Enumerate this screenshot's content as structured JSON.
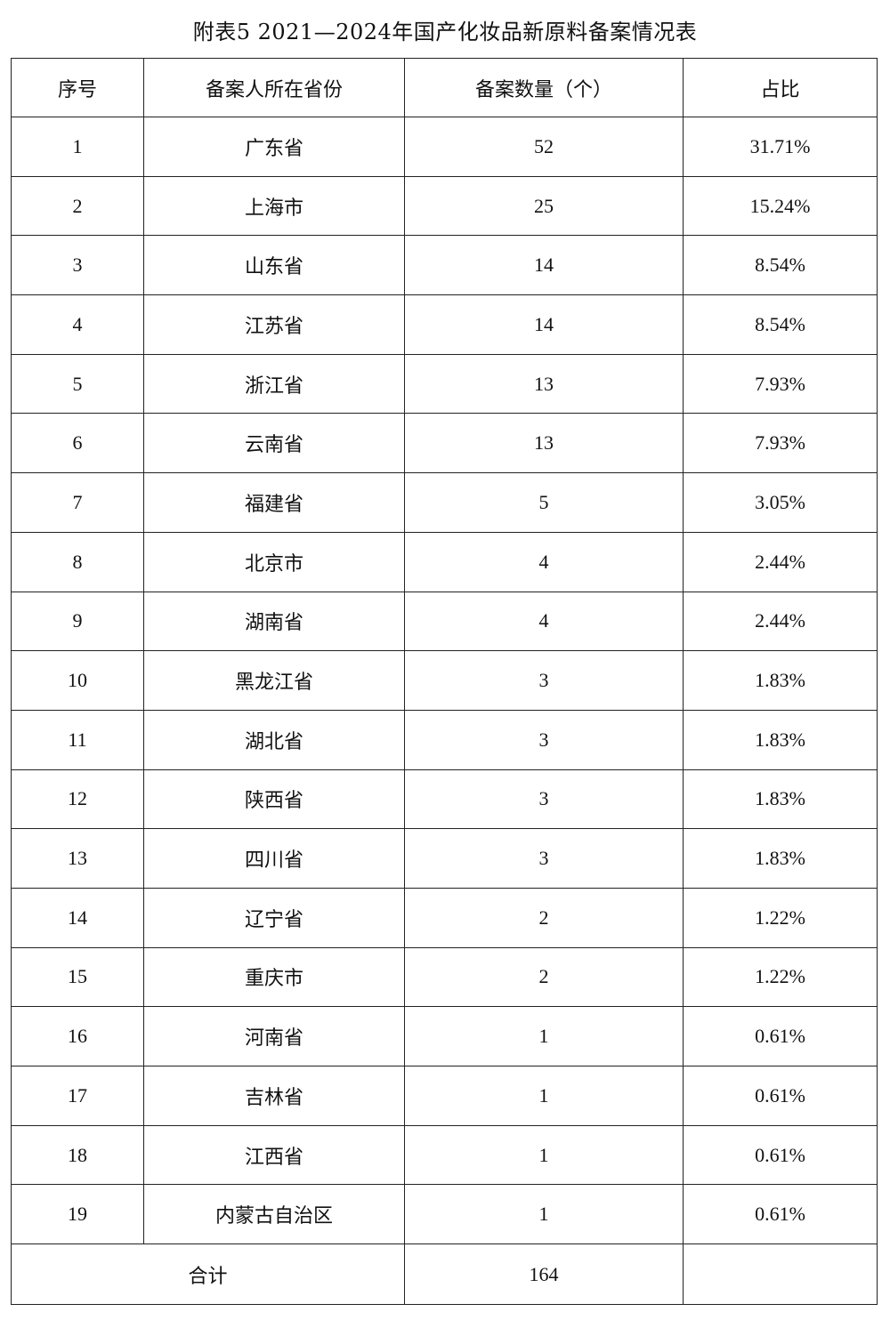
{
  "title": "附表5  2021—2024年国产化妆品新原料备案情况表",
  "headers": [
    "序号",
    "备案人所在省份",
    "备案数量（个）",
    "占比"
  ],
  "rows": [
    [
      "1",
      "广东省",
      "52",
      "31.71%"
    ],
    [
      "2",
      "上海市",
      "25",
      "15.24%"
    ],
    [
      "3",
      "山东省",
      "14",
      "8.54%"
    ],
    [
      "4",
      "江苏省",
      "14",
      "8.54%"
    ],
    [
      "5",
      "浙江省",
      "13",
      "7.93%"
    ],
    [
      "6",
      "云南省",
      "13",
      "7.93%"
    ],
    [
      "7",
      "福建省",
      "5",
      "3.05%"
    ],
    [
      "8",
      "北京市",
      "4",
      "2.44%"
    ],
    [
      "9",
      "湖南省",
      "4",
      "2.44%"
    ],
    [
      "10",
      "黑龙江省",
      "3",
      "1.83%"
    ],
    [
      "11",
      "湖北省",
      "3",
      "1.83%"
    ],
    [
      "12",
      "陕西省",
      "3",
      "1.83%"
    ],
    [
      "13",
      "四川省",
      "3",
      "1.83%"
    ],
    [
      "14",
      "辽宁省",
      "2",
      "1.22%"
    ],
    [
      "15",
      "重庆市",
      "2",
      "1.22%"
    ],
    [
      "16",
      "河南省",
      "1",
      "0.61%"
    ],
    [
      "17",
      "吉林省",
      "1",
      "0.61%"
    ],
    [
      "18",
      "江西省",
      "1",
      "0.61%"
    ],
    [
      "19",
      "内蒙古自治区",
      "1",
      "0.61%"
    ]
  ],
  "total": {
    "label": "合计",
    "count": "164",
    "share": ""
  }
}
